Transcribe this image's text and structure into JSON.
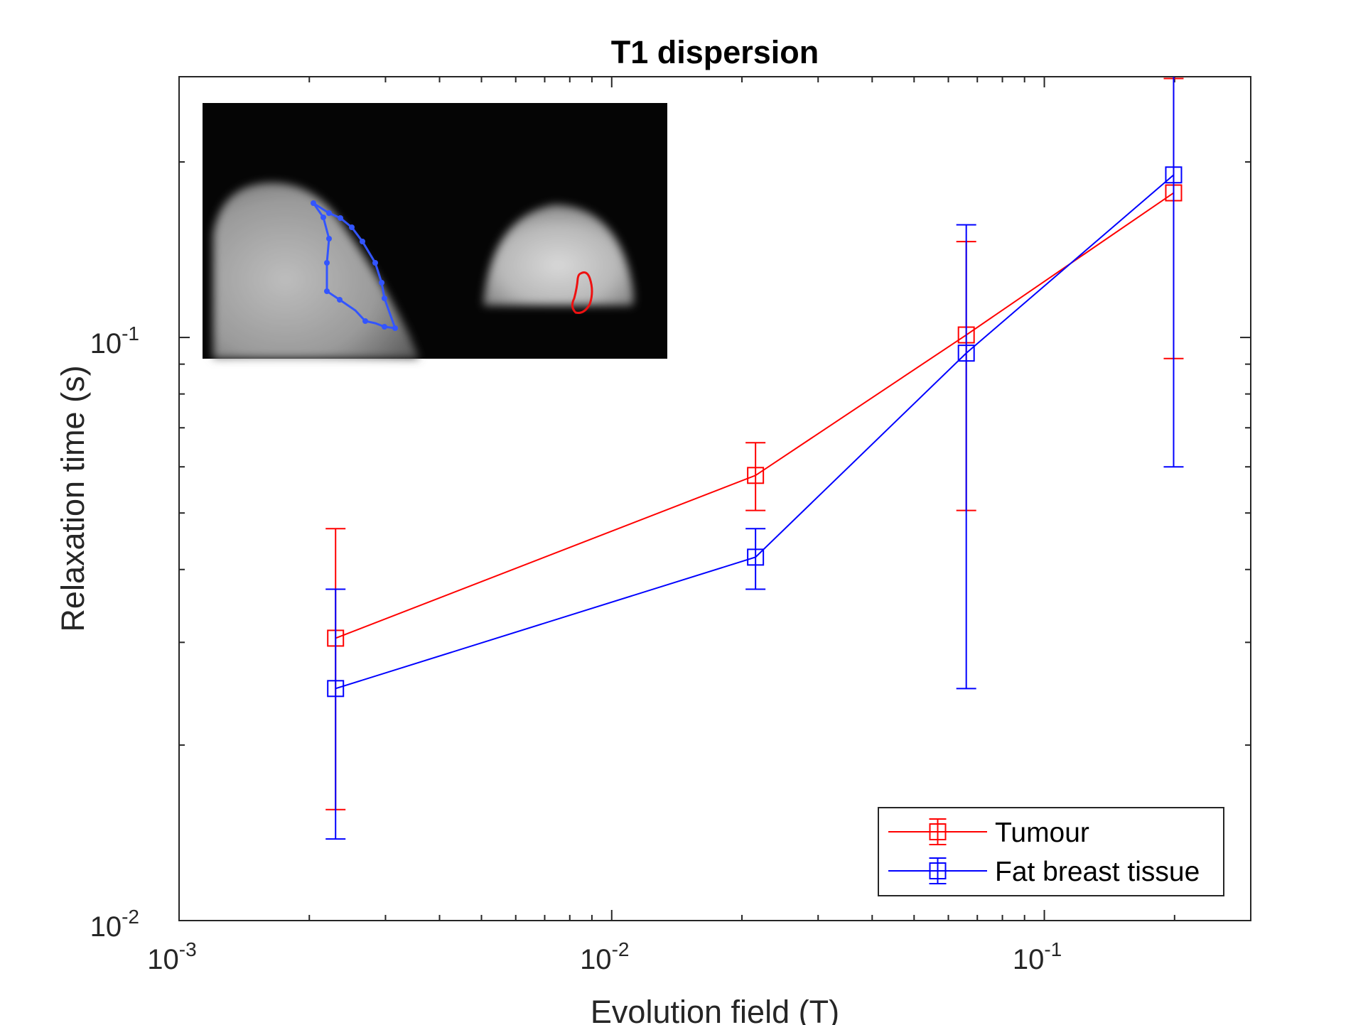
{
  "chart_data": {
    "type": "line",
    "title": "T1 dispersion",
    "xlabel": "Evolution field (T)",
    "ylabel": "Relaxation time (s)",
    "x_scale": "log",
    "y_scale": "log",
    "xlim": [
      0.001,
      0.3
    ],
    "ylim": [
      0.01,
      0.28
    ],
    "x_tick_labels": [
      "10",
      "10",
      "10"
    ],
    "x_tick_exponents": [
      "-3",
      "-2",
      "-1"
    ],
    "y_tick_labels": [
      "10",
      "10"
    ],
    "y_tick_exponents": [
      "-2",
      "-1"
    ],
    "grid": false,
    "legend_position": "bottom-right",
    "x": [
      0.0023,
      0.0215,
      0.066,
      0.199
    ],
    "series": [
      {
        "name": "Tumour",
        "color": "#ff0000",
        "marker": "square",
        "values": [
          0.0305,
          0.058,
          0.101,
          0.177
        ],
        "error_lower": [
          0.0155,
          0.0505,
          0.0505,
          0.092
        ],
        "error_upper": [
          0.047,
          0.066,
          0.146,
          0.278
        ]
      },
      {
        "name": "Fat breast tissue",
        "color": "#0000ff",
        "marker": "square",
        "values": [
          0.025,
          0.042,
          0.094,
          0.19
        ],
        "error_lower": [
          0.0138,
          0.037,
          0.025,
          0.06
        ],
        "error_upper": [
          0.037,
          0.047,
          0.156,
          0.33
        ]
      }
    ]
  },
  "inset": {
    "description_icon": "mri-breast-scan-image",
    "roi_colors": {
      "fat": "#3355ff",
      "tumour": "#ee1111"
    }
  }
}
